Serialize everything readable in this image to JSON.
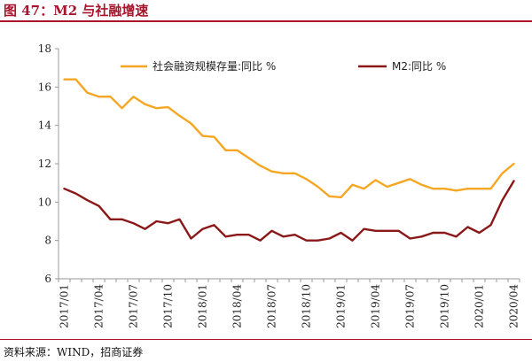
{
  "header": {
    "title": "图 47：M2 与社融增速"
  },
  "footer": {
    "source": "资料来源：WIND，招商证券"
  },
  "colors": {
    "accent": "#a8142c",
    "series_social": "#f5a623",
    "series_m2": "#8b1818",
    "axis": "#999999"
  },
  "chart_data": {
    "type": "line",
    "ylim": [
      6,
      18
    ],
    "y_ticks": [
      6,
      8,
      10,
      12,
      14,
      16,
      18
    ],
    "x_tick_labels": [
      "2017/01",
      "2017/04",
      "2017/07",
      "2017/10",
      "2018/01",
      "2018/04",
      "2018/07",
      "2018/10",
      "2019/01",
      "2019/04",
      "2019/07",
      "2019/10",
      "2020/01",
      "2020/04"
    ],
    "x": [
      "2017/01",
      "2017/02",
      "2017/03",
      "2017/04",
      "2017/05",
      "2017/06",
      "2017/07",
      "2017/08",
      "2017/09",
      "2017/10",
      "2017/11",
      "2017/12",
      "2018/01",
      "2018/02",
      "2018/03",
      "2018/04",
      "2018/05",
      "2018/06",
      "2018/07",
      "2018/08",
      "2018/09",
      "2018/10",
      "2018/11",
      "2018/12",
      "2019/01",
      "2019/02",
      "2019/03",
      "2019/04",
      "2019/05",
      "2019/06",
      "2019/07",
      "2019/08",
      "2019/09",
      "2019/10",
      "2019/11",
      "2019/12",
      "2020/01",
      "2020/02",
      "2020/03",
      "2020/04"
    ],
    "legend_position": "top",
    "grid": false,
    "series": [
      {
        "name": "社会融资规模存量:同比 %",
        "color": "#f5a623",
        "values": [
          16.4,
          16.4,
          15.7,
          15.5,
          15.5,
          14.9,
          15.5,
          15.1,
          14.9,
          14.95,
          14.5,
          14.1,
          13.45,
          13.4,
          12.7,
          12.7,
          12.3,
          11.9,
          11.6,
          11.5,
          11.5,
          11.2,
          10.8,
          10.3,
          10.25,
          10.9,
          10.7,
          11.15,
          10.8,
          11.0,
          11.2,
          10.9,
          10.7,
          10.7,
          10.6,
          10.7,
          10.7,
          10.7,
          11.5,
          12.0
        ]
      },
      {
        "name": "M2:同比 %",
        "color": "#8b1818",
        "values": [
          10.7,
          10.45,
          10.1,
          9.8,
          9.1,
          9.1,
          8.9,
          8.6,
          9.0,
          8.9,
          9.1,
          8.1,
          8.6,
          8.8,
          8.2,
          8.3,
          8.3,
          8.0,
          8.5,
          8.2,
          8.3,
          8.0,
          8.0,
          8.1,
          8.4,
          8.0,
          8.6,
          8.5,
          8.5,
          8.5,
          8.1,
          8.2,
          8.4,
          8.4,
          8.2,
          8.7,
          8.4,
          8.8,
          10.1,
          11.1
        ]
      }
    ]
  }
}
